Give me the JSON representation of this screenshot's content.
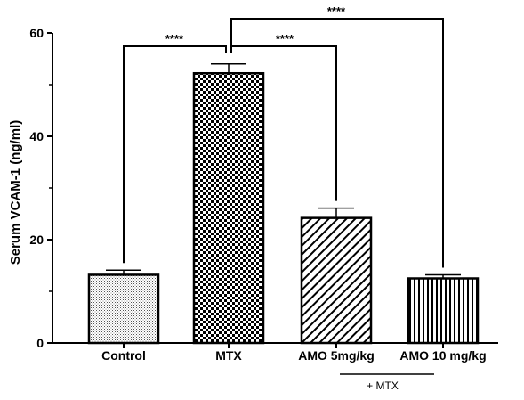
{
  "chart_data": {
    "type": "bar",
    "categories": [
      "Control",
      "MTX",
      "AMO 5mg/kg",
      "AMO 10 mg/kg"
    ],
    "values": [
      13.2,
      52.2,
      24.2,
      12.5
    ],
    "errors": [
      0.9,
      1.8,
      1.9,
      0.7
    ],
    "patterns": [
      "dots",
      "checker",
      "diagonal",
      "vertical"
    ],
    "ylabel": "Serum VCAM-1 (ng/ml)",
    "xlabel": "",
    "ylim": [
      0,
      60
    ],
    "yticks": [
      0,
      20,
      40,
      60
    ],
    "group_label": "+ MTX",
    "significance": [
      {
        "from": 1,
        "to": 0,
        "label": "****"
      },
      {
        "from": 1,
        "to": 2,
        "label": "****"
      },
      {
        "from": 1,
        "to": 3,
        "label": "****"
      }
    ],
    "colors": {
      "stroke": "#000000",
      "background": "#ffffff"
    }
  }
}
